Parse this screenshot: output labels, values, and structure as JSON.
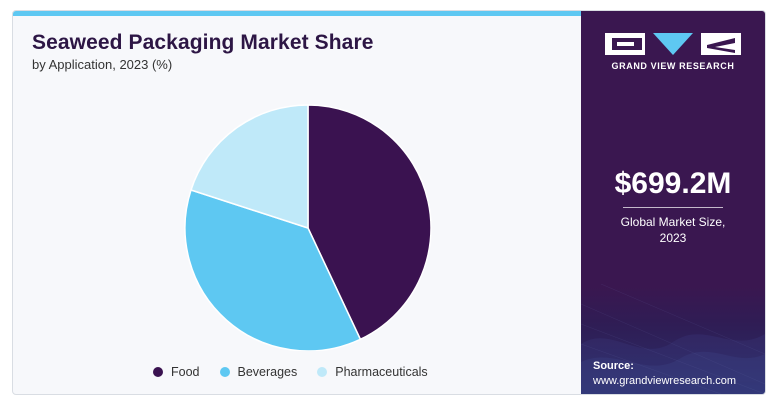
{
  "header": {
    "title": "Seaweed Packaging Market Share",
    "subtitle": "by Application, 2023 (%)"
  },
  "brand": {
    "name": "GRAND VIEW RESEARCH",
    "logo": "gvr-logo-icon"
  },
  "market": {
    "value": "$699.2M",
    "label_line1": "Global Market Size,",
    "label_line2": "2023"
  },
  "source": {
    "label": "Source:",
    "url": "www.grandviewresearch.com"
  },
  "colors": {
    "accent": "#5ec8f2",
    "panel": "#3a1750"
  },
  "chart_data": {
    "type": "pie",
    "categories": [
      "Food",
      "Beverages",
      "Pharmaceuticals"
    ],
    "values": [
      43,
      37,
      20
    ],
    "colors": [
      "#3a1250",
      "#5ec8f2",
      "#bfe9f9"
    ],
    "legend_position": "bottom"
  }
}
